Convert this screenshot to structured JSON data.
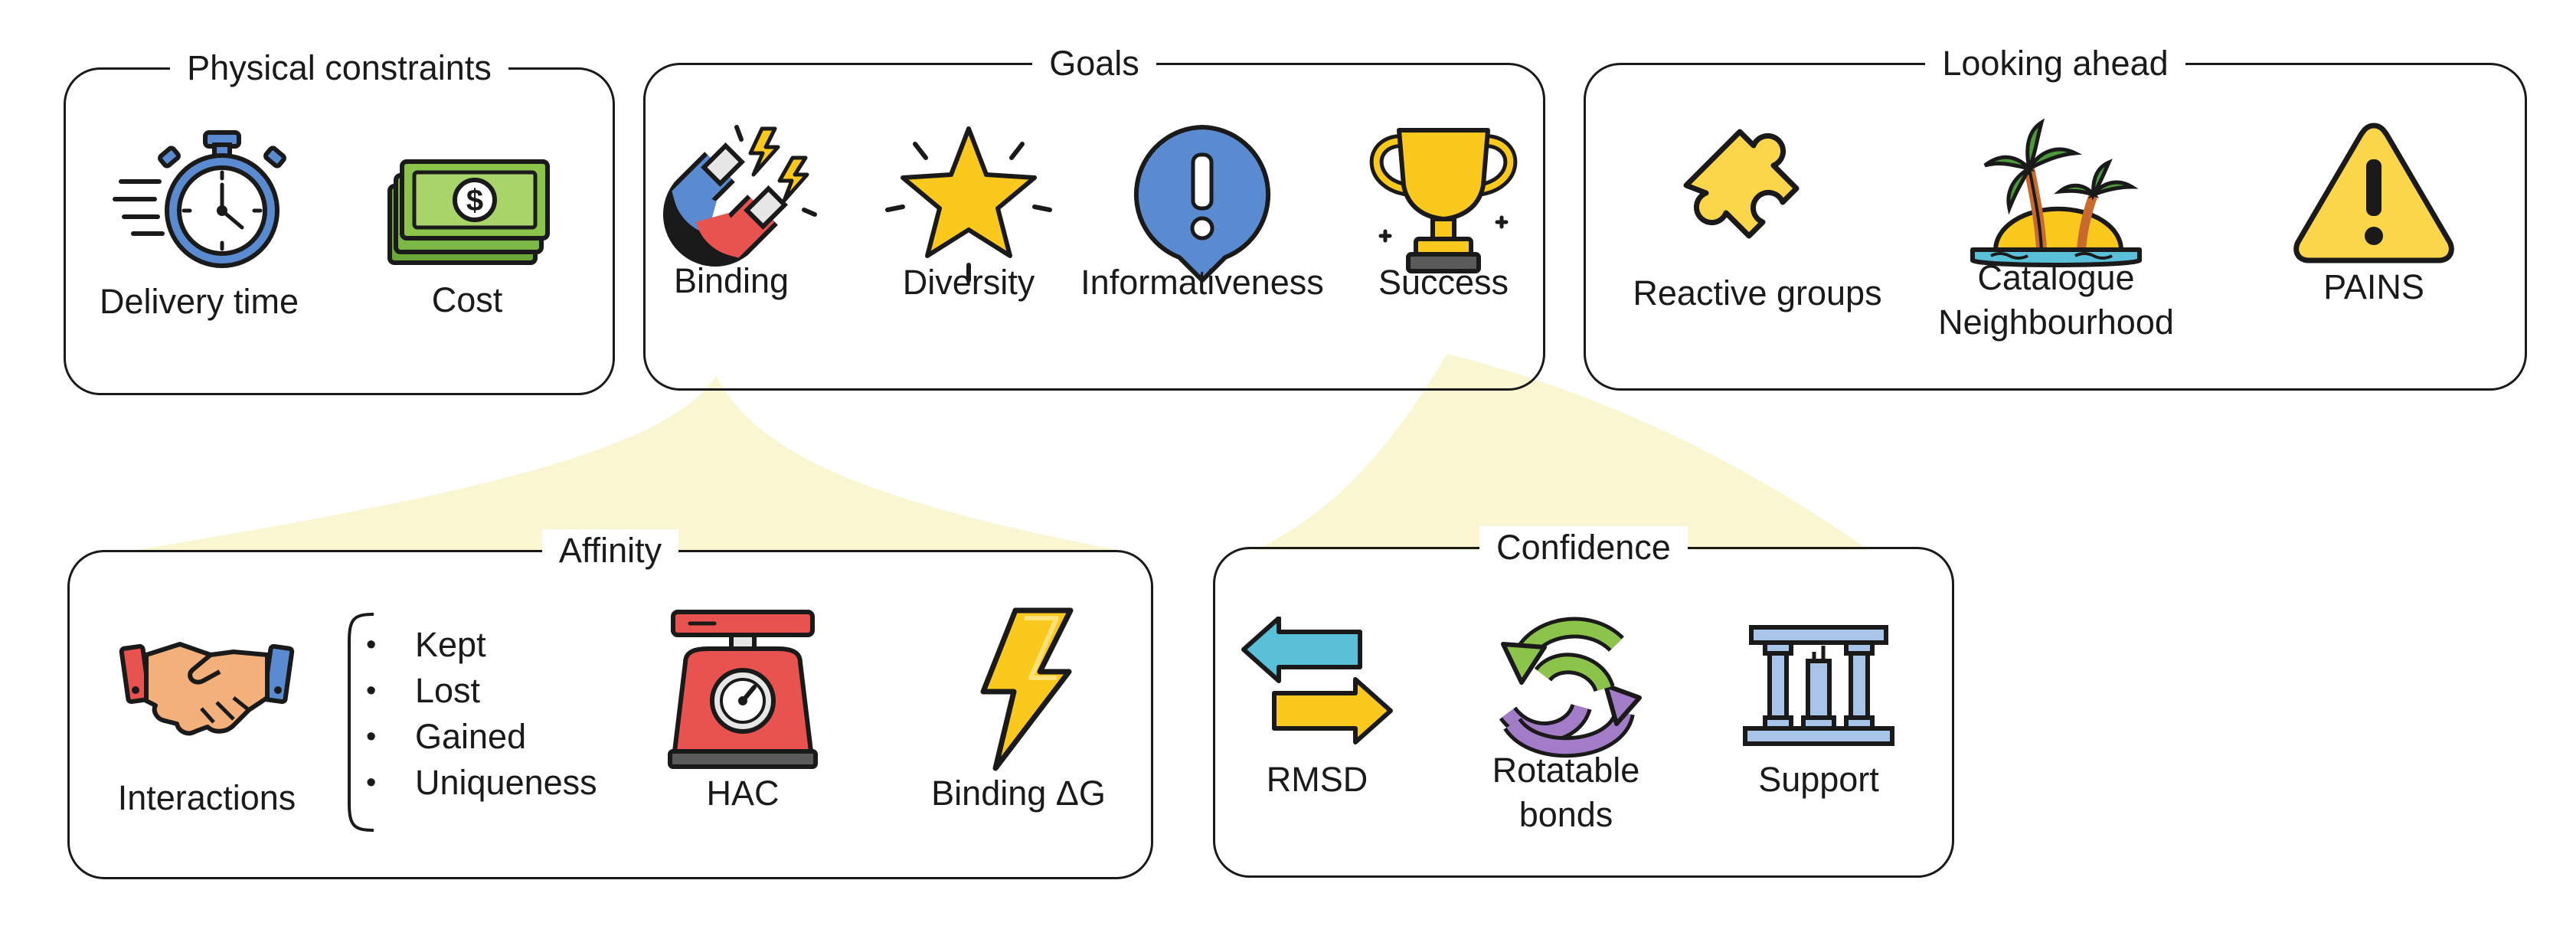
{
  "panels": {
    "physical": {
      "title": "Physical constraints",
      "items": [
        {
          "label": "Delivery time",
          "icon": "stopwatch-icon"
        },
        {
          "label": "Cost",
          "icon": "banknotes-icon"
        }
      ]
    },
    "goals": {
      "title": "Goals",
      "items": [
        {
          "label": "Binding",
          "icon": "magnet-icon"
        },
        {
          "label": "Diversity",
          "icon": "star-icon"
        },
        {
          "label": "Informativeness",
          "icon": "exclamation-bubble-icon"
        },
        {
          "label": "Success",
          "icon": "trophy-icon"
        }
      ]
    },
    "ahead": {
      "title": "Looking ahead",
      "items": [
        {
          "label": "Reactive groups",
          "icon": "puzzle-piece-icon"
        },
        {
          "label": "Catalogue",
          "label2": "Neighbourhood",
          "icon": "island-icon"
        },
        {
          "label": "PAINS",
          "icon": "warning-triangle-icon"
        }
      ]
    },
    "affinity": {
      "title": "Affinity",
      "items": [
        {
          "label": "Interactions",
          "icon": "handshake-icon"
        },
        {
          "label": "HAC",
          "icon": "scale-icon"
        },
        {
          "label": "Binding ΔG",
          "icon": "lightning-icon"
        }
      ],
      "bullets": [
        "Kept",
        "Lost",
        "Gained",
        "Uniqueness"
      ]
    },
    "confidence": {
      "title": "Confidence",
      "items": [
        {
          "label": "RMSD",
          "icon": "arrows-swap-icon"
        },
        {
          "label": "Rotatable",
          "label2": "bonds",
          "icon": "rotate-arrows-icon"
        },
        {
          "label": "Support",
          "icon": "pillars-icon"
        }
      ]
    }
  },
  "colors": {
    "outline": "#1a1a1a",
    "highlight_beam": "#fbf6d2",
    "blue": "#5a8ad0",
    "gold": "#fbc81e",
    "red": "#e8534f",
    "green": "#8cc34b"
  }
}
